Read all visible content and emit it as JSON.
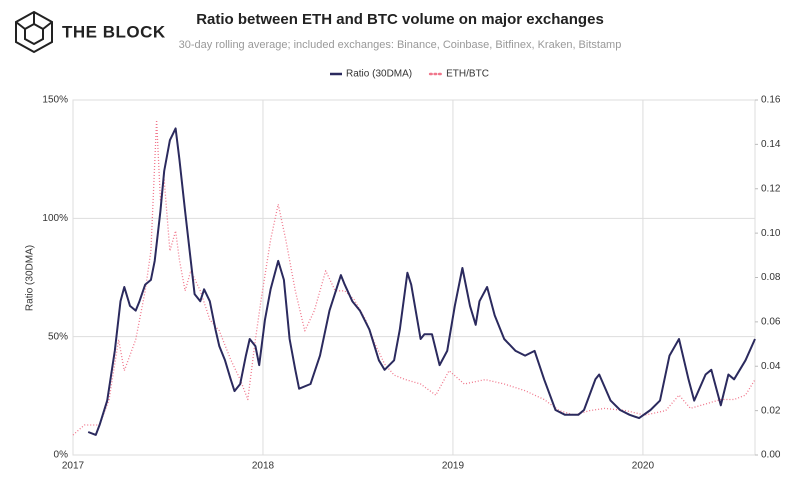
{
  "brand": "THE BLOCK",
  "chart_data": {
    "type": "line",
    "title": "Ratio between ETH and BTC volume on major exchanges",
    "subtitle": "30-day rolling average; included exchanges: Binance, Coinbase, Bitfinex, Kraken, Bitstamp",
    "y_label": "Ratio (30DMA)",
    "xlim": [
      2017,
      2020.59
    ],
    "xticks": [
      2017,
      2018,
      2019,
      2020
    ],
    "ylim": [
      0,
      150
    ],
    "yticks": [
      {
        "value": 0,
        "label": "0%"
      },
      {
        "value": 50,
        "label": "50%"
      },
      {
        "value": 100,
        "label": "100%"
      },
      {
        "value": 150,
        "label": "150%"
      }
    ],
    "y2lim": [
      0,
      0.16
    ],
    "y2ticks": [
      {
        "value": 0,
        "label": "0.00"
      },
      0.02,
      0.04,
      0.06,
      0.08,
      {
        "value": 0.1,
        "label": "0.10"
      },
      0.12,
      0.14,
      0.16
    ],
    "grid": true,
    "legend": "top",
    "series": [
      {
        "name": "Ratio (30DMA)",
        "color": "#2b2a5e",
        "style": "solid",
        "x": [
          2017.08,
          2017.12,
          2017.14,
          2017.18,
          2017.22,
          2017.25,
          2017.27,
          2017.3,
          2017.33,
          2017.35,
          2017.38,
          2017.41,
          2017.43,
          2017.46,
          2017.48,
          2017.51,
          2017.54,
          2017.56,
          2017.59,
          2017.62,
          2017.64,
          2017.67,
          2017.69,
          2017.72,
          2017.75,
          2017.77,
          2017.8,
          2017.83,
          2017.85,
          2017.88,
          2017.91,
          2017.93,
          2017.96,
          2017.98,
          2018.01,
          2018.04,
          2018.08,
          2018.11,
          2018.14,
          2018.17,
          2018.19,
          2018.25,
          2018.3,
          2018.35,
          2018.41,
          2018.43,
          2018.47,
          2018.51,
          2018.56,
          2018.61,
          2018.64,
          2018.69,
          2018.72,
          2018.76,
          2018.78,
          2018.83,
          2018.85,
          2018.89,
          2018.93,
          2018.97,
          2019.01,
          2019.05,
          2019.09,
          2019.12,
          2019.14,
          2019.18,
          2019.22,
          2019.27,
          2019.33,
          2019.38,
          2019.43,
          2019.48,
          2019.54,
          2019.59,
          2019.66,
          2019.69,
          2019.75,
          2019.77,
          2019.83,
          2019.88,
          2019.93,
          2019.98,
          2020.04,
          2020.09,
          2020.14,
          2020.19,
          2020.24,
          2020.27,
          2020.33,
          2020.36,
          2020.41,
          2020.45,
          2020.48,
          2020.54,
          2020.59
        ],
        "values": [
          9.7,
          8.5,
          12.7,
          23,
          44,
          65,
          71,
          63,
          61,
          65,
          72,
          74,
          82,
          103,
          120,
          133,
          138,
          125,
          103,
          82,
          68,
          65,
          70,
          65,
          53,
          46,
          40,
          32,
          27,
          30,
          42,
          49,
          46,
          38,
          57,
          70,
          82,
          74,
          49,
          36,
          28,
          30,
          42,
          61,
          76,
          72,
          65,
          61,
          53,
          40,
          36,
          40,
          53,
          77,
          72,
          49,
          51,
          51,
          38,
          44,
          63,
          79,
          63,
          55,
          65,
          71,
          59,
          49,
          44,
          42,
          44,
          32,
          19,
          17,
          17,
          19,
          32,
          34,
          23,
          19,
          17,
          15.6,
          19,
          23,
          42,
          49,
          32,
          23,
          34,
          36,
          21,
          34,
          32,
          40,
          49
        ]
      },
      {
        "name": "ETH/BTC",
        "color": "#f0768b",
        "style": "dotted",
        "axis": "y2",
        "x": [
          2017.0,
          2017.06,
          2017.14,
          2017.19,
          2017.24,
          2017.27,
          2017.33,
          2017.38,
          2017.41,
          2017.44,
          2017.46,
          2017.48,
          2017.51,
          2017.54,
          2017.56,
          2017.59,
          2017.62,
          2017.67,
          2017.72,
          2017.77,
          2017.83,
          2017.88,
          2017.92,
          2017.96,
          2017.99,
          2018.04,
          2018.08,
          2018.12,
          2018.17,
          2018.22,
          2018.27,
          2018.33,
          2018.38,
          2018.43,
          2018.48,
          2018.54,
          2018.59,
          2018.64,
          2018.69,
          2018.75,
          2018.83,
          2018.91,
          2018.98,
          2019.06,
          2019.17,
          2019.27,
          2019.38,
          2019.48,
          2019.56,
          2019.64,
          2019.72,
          2019.8,
          2019.91,
          2020.01,
          2020.12,
          2020.19,
          2020.25,
          2020.33,
          2020.41,
          2020.48,
          2020.54,
          2020.59
        ],
        "values": [
          0.009,
          0.0135,
          0.0135,
          0.025,
          0.052,
          0.038,
          0.052,
          0.074,
          0.092,
          0.151,
          0.115,
          0.124,
          0.092,
          0.101,
          0.088,
          0.074,
          0.083,
          0.074,
          0.061,
          0.056,
          0.043,
          0.034,
          0.025,
          0.052,
          0.07,
          0.097,
          0.113,
          0.097,
          0.074,
          0.056,
          0.065,
          0.083,
          0.074,
          0.074,
          0.07,
          0.061,
          0.05,
          0.041,
          0.036,
          0.034,
          0.032,
          0.027,
          0.038,
          0.032,
          0.034,
          0.032,
          0.029,
          0.025,
          0.02,
          0.018,
          0.02,
          0.021,
          0.02,
          0.018,
          0.02,
          0.027,
          0.021,
          0.023,
          0.025,
          0.025,
          0.027,
          0.034
        ]
      }
    ]
  }
}
